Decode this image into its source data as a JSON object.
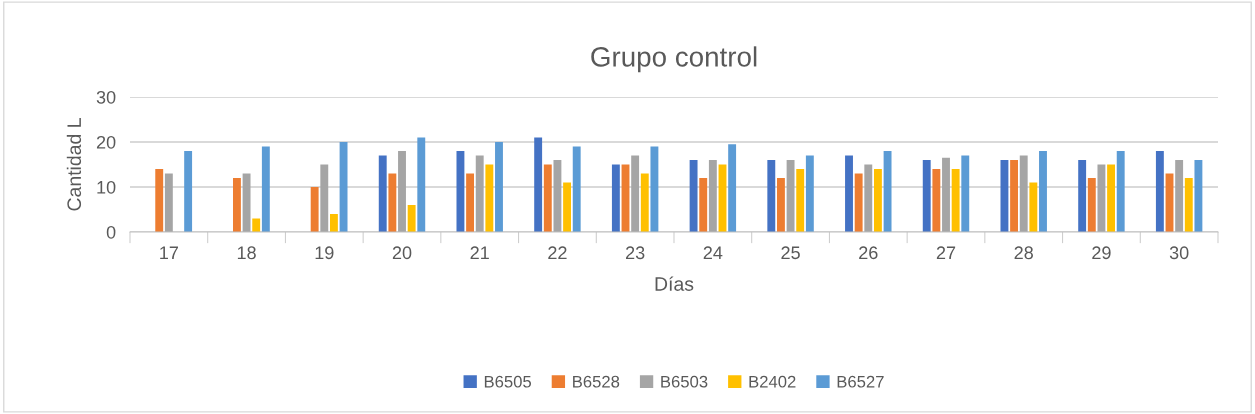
{
  "chart_data": {
    "type": "bar",
    "title": "Grupo control",
    "xlabel": "Días",
    "ylabel": "Cantidad L",
    "categories": [
      "17",
      "18",
      "19",
      "20",
      "21",
      "22",
      "23",
      "24",
      "25",
      "26",
      "27",
      "28",
      "29",
      "30"
    ],
    "series": [
      {
        "name": "B6505",
        "color": "#4472c4",
        "values": [
          null,
          null,
          null,
          17,
          18,
          21,
          15,
          16,
          16,
          17,
          16,
          16,
          16,
          18
        ]
      },
      {
        "name": "B6528",
        "color": "#ed7d31",
        "values": [
          14,
          12,
          10,
          13,
          13,
          15,
          15,
          12,
          12,
          13,
          14,
          16,
          12,
          13
        ]
      },
      {
        "name": "B6503",
        "color": "#a5a5a5",
        "values": [
          13,
          13,
          15,
          18,
          17,
          16,
          17,
          16,
          16,
          15,
          16.5,
          17,
          15,
          16
        ]
      },
      {
        "name": "B2402",
        "color": "#ffc000",
        "values": [
          null,
          3,
          4,
          6,
          15,
          11,
          13,
          15,
          14,
          14,
          14,
          11,
          15,
          12
        ]
      },
      {
        "name": "B6527",
        "color": "#5b9bd5",
        "values": [
          18,
          19,
          20,
          21,
          20,
          19,
          19,
          19.5,
          17,
          18,
          17,
          18,
          18,
          16
        ]
      }
    ],
    "ylim": [
      0,
      30
    ],
    "yticks": [
      0,
      10,
      20,
      30
    ],
    "grid": "y",
    "legend": "bottom"
  }
}
